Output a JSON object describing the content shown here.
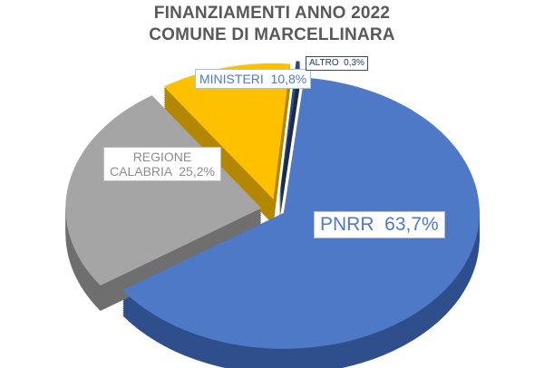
{
  "chart_data": {
    "type": "pie",
    "title_lines": [
      "FINANZIAMENTI ANNO 2022",
      "COMUNE DI MARCELLINARA"
    ],
    "slices": [
      {
        "label_lines": [
          "PNRR  63,7%"
        ],
        "value": 63.7,
        "color": "#4e79c6",
        "side_color": "#2e4f8c"
      },
      {
        "label_lines": [
          "REGIONE",
          "CALABRIA  25,2%"
        ],
        "value": 25.2,
        "color": "#a5a5a5",
        "side_color": "#6f6f6f"
      },
      {
        "label_lines": [
          "MINISTERI  10,8%"
        ],
        "value": 10.8,
        "color": "#ffc000",
        "side_color": "#b38700"
      },
      {
        "label_lines": [
          "ALTRO  0,3%"
        ],
        "value": 0.3,
        "color": "#2f4a7a",
        "side_color": "#1a2c4e"
      }
    ],
    "exploded": true,
    "three_d": true
  }
}
